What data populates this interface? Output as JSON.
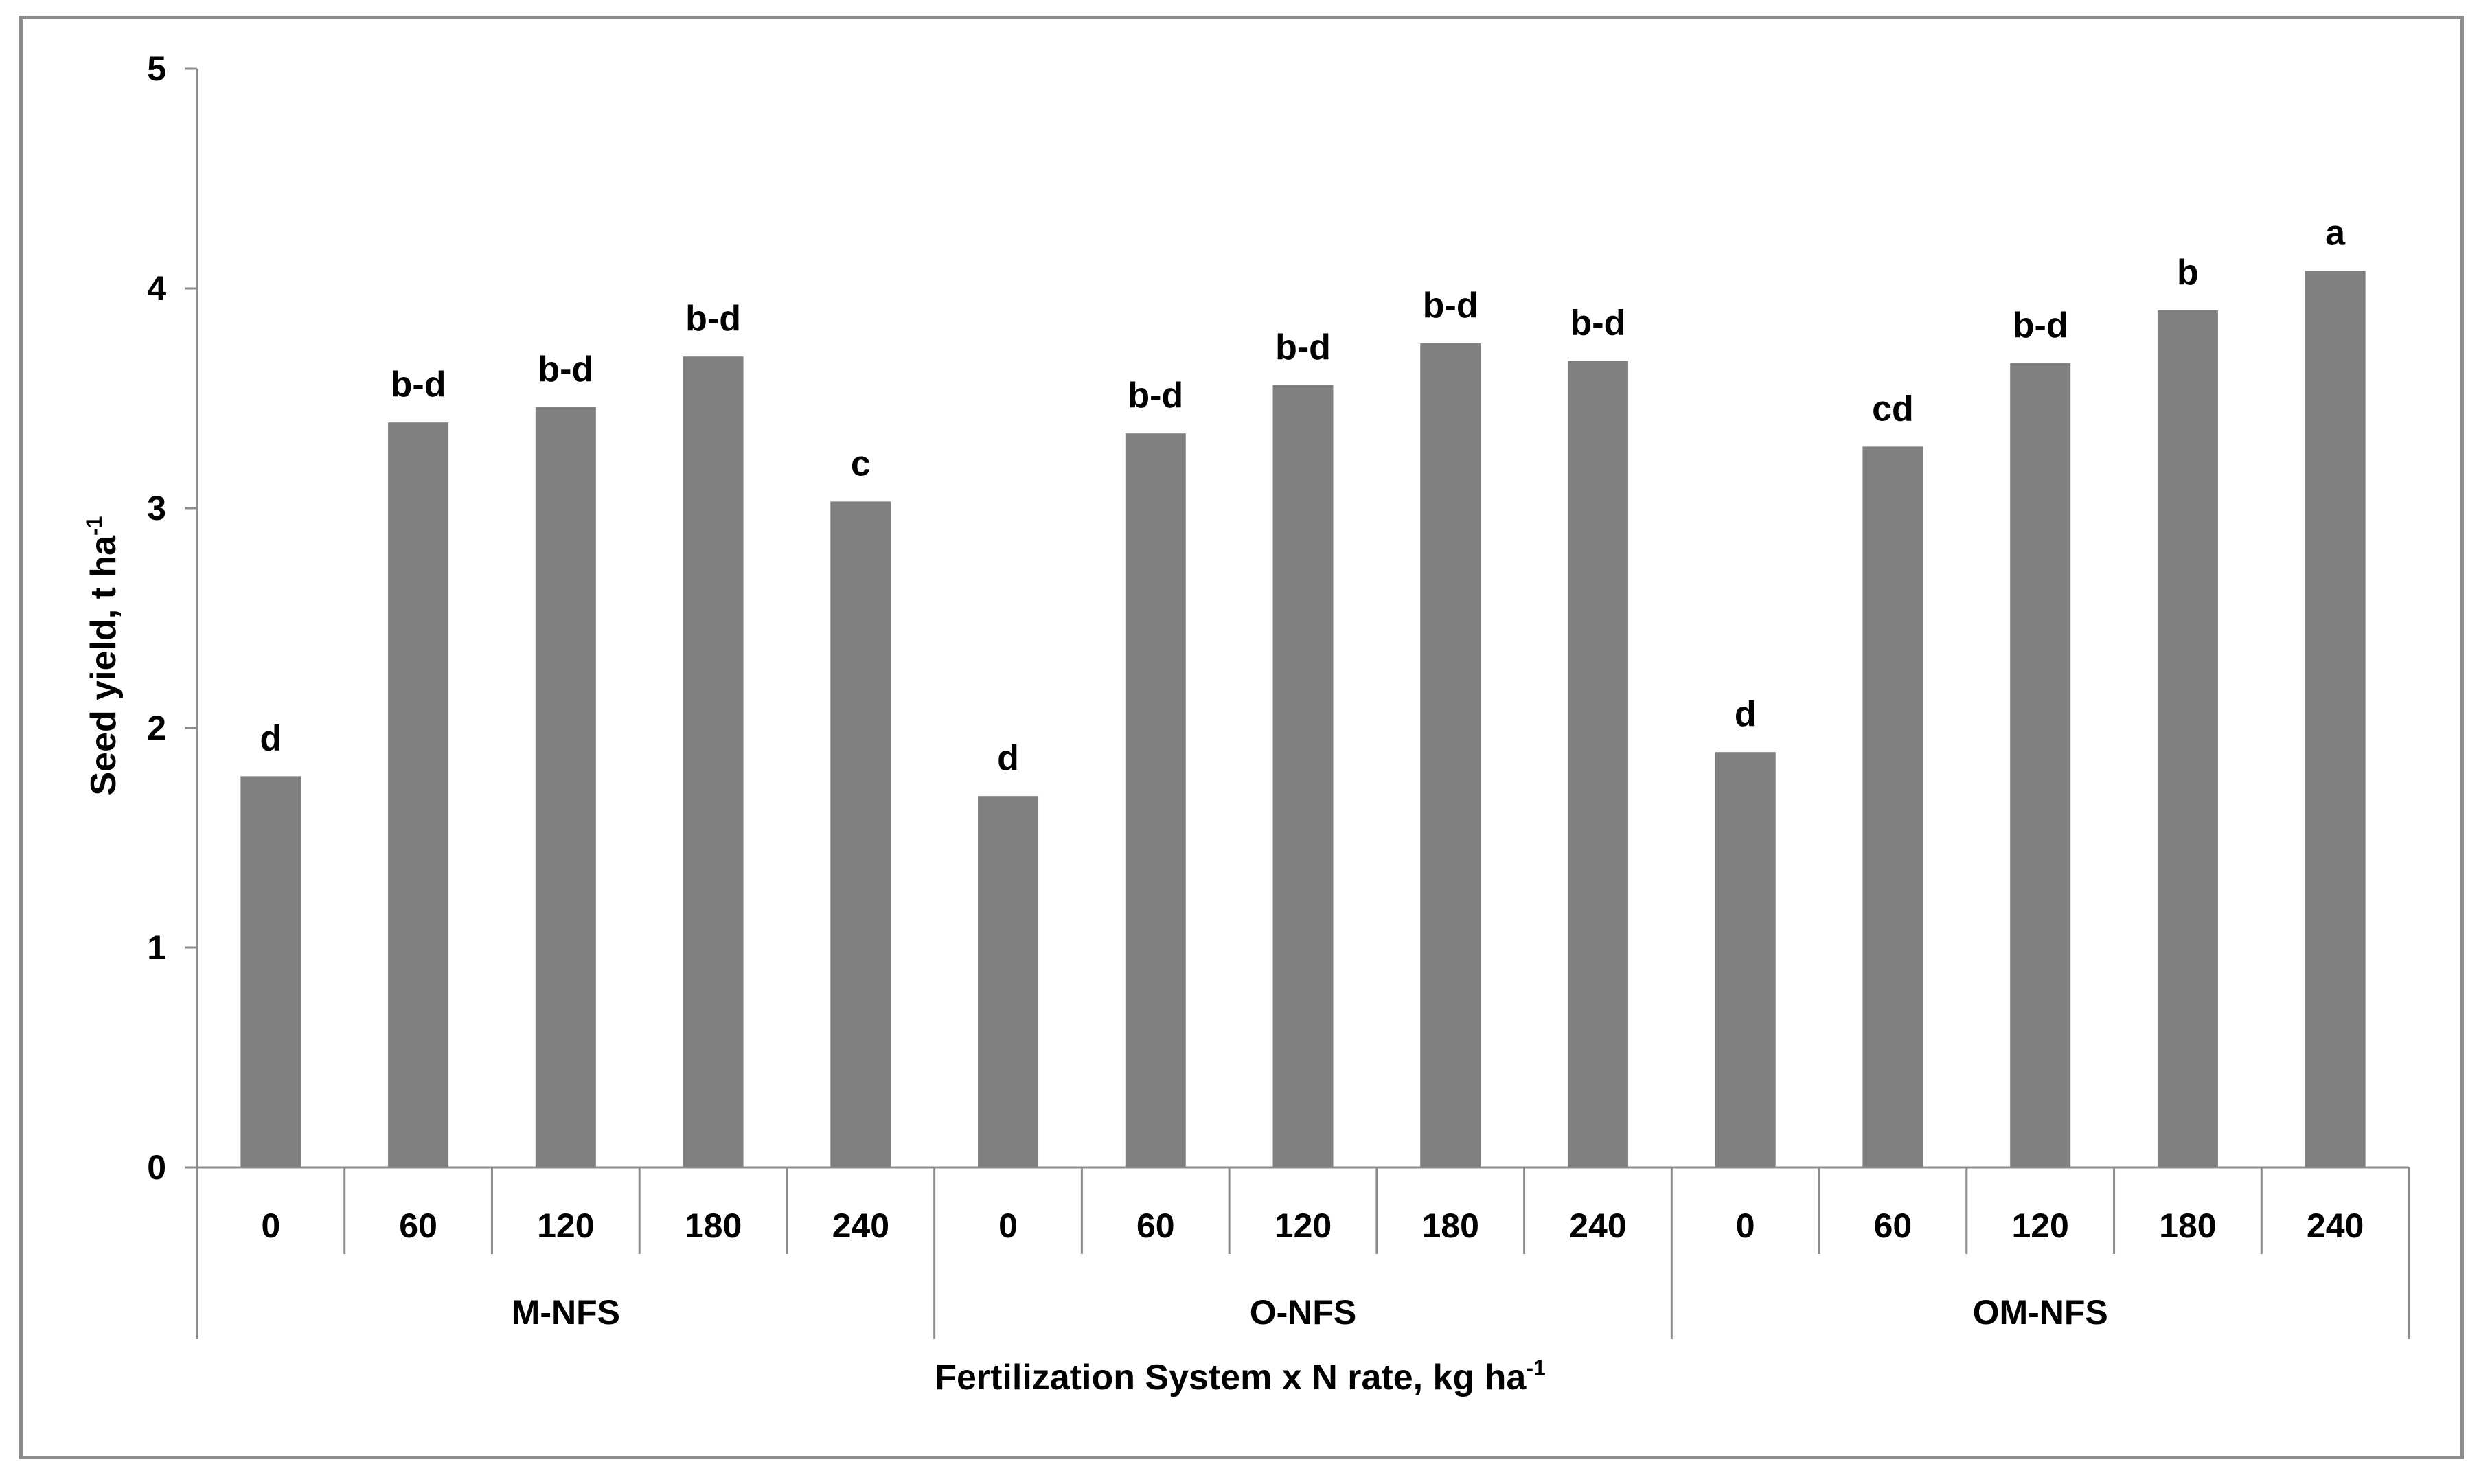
{
  "chart_data": {
    "type": "bar",
    "title": "",
    "xlabel": "Fertilization System x N rate, kg ha",
    "xlabel_sup": "-1",
    "ylabel": "Seed yield, t ha",
    "ylabel_sup": "-1",
    "ylim": [
      0,
      5
    ],
    "yticks": [
      0,
      1,
      2,
      3,
      4,
      5
    ],
    "grid": false,
    "legend": "none",
    "bar_color": "#808080",
    "groups": [
      {
        "name": "M-NFS",
        "categories": [
          "0",
          "60",
          "120",
          "180",
          "240"
        ],
        "values": [
          1.78,
          3.39,
          3.46,
          3.69,
          3.03
        ],
        "labels": [
          "d",
          "b-d",
          "b-d",
          "b-d",
          "c"
        ]
      },
      {
        "name": "O-NFS",
        "categories": [
          "0",
          "60",
          "120",
          "180",
          "240"
        ],
        "values": [
          1.69,
          3.34,
          3.56,
          3.75,
          3.67
        ],
        "labels": [
          "d",
          "b-d",
          "b-d",
          "b-d",
          "b-d"
        ]
      },
      {
        "name": "OM-NFS",
        "categories": [
          "0",
          "60",
          "120",
          "180",
          "240"
        ],
        "values": [
          1.89,
          3.28,
          3.66,
          3.9,
          4.08
        ],
        "labels": [
          "d",
          "cd",
          "b-d",
          "b",
          "a"
        ]
      }
    ]
  }
}
